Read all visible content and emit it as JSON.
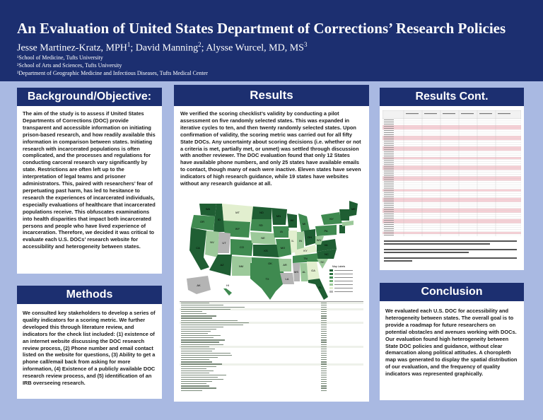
{
  "header": {
    "title": "An Evaluation of United States Department of Corrections’ Research Policies",
    "authors": [
      {
        "name": "Jesse Martinez-Kratz, MPH",
        "aff": "1",
        "sep": "; "
      },
      {
        "name": "David Manning",
        "aff": "2",
        "sep": "; "
      },
      {
        "name": "Alysse Wurcel, MD, MS",
        "aff": "3",
        "sep": ""
      }
    ],
    "affiliations": [
      "¹School of Medicine, Tufts University",
      "²School of Arts and Sciences, Tufts University",
      "³Department of Geographic Medicine and Infectious Diseases, Tufts Medical Center"
    ]
  },
  "background": {
    "heading": "Background/Objective:",
    "text": "The aim of the study is to assess if United States Departments of Corrections (DOC) provide transparent and accessible information on initiating prison-based research, and how readily available this information in comparison between states. Initiating research with incarcerated populations is often complicated, and the processes and regulations for conducting carceral research vary significantly by state. Restrictions are often left up to the interpretation of legal teams and prisoner administrators. This, paired with researchers’ fear of perpetuating past harm, has led to hesitance to research the experiences of incarcerated individuals, especially evaluations of healthcare that incarcerated populations receive. This obfuscates examinations into health disparities that impact both incarcerated persons and people who have lived experience of incarceration. Therefore, we decided it was critical to evaluate each U.S. DOCs’ research website for accessibility and heterogeneity between states."
  },
  "methods": {
    "heading": "Methods",
    "text": "We consulted key stakeholders to develop a series of quality indicators for a scoring metric. We further developed this through literature review, and indicators for the check list included: (1) existence of an internet website discussing the DOC research review process, (2) Phone number and email contact listed on the website for questions, (3) Ability to get a phone call/email back from asking for more information, (4) Existence of a publicly available DOC research review process, and (5) identification of an IRB overseeing research."
  },
  "results": {
    "heading": "Results",
    "text": "We verified the scoring checklist’s validity by conducting a pilot assessment on five randomly selected states. This was expanded in iterative cycles to ten, and then twenty randomly selected states. Upon confirmation of validity, the scoring metric was carried out for all fifty State DOCs. Any uncertainty about scoring decisions (i.e. whether or not a criteria is met, partially met, or unmet) was settled through discussion with another reviewer. The DOC evaluation found that only 12 States have available phone numbers, and only 25 states have available emails to contact, though many of each were inactive. Eleven states have seven indicators of high research guidance, while 19 states have websites without any research guidance at all.",
    "map_state_labels": [
      "WA",
      "OR",
      "ID",
      "MT",
      "ND",
      "MN",
      "SD",
      "WY",
      "NV",
      "UT",
      "CO",
      "NE",
      "IA",
      "WI",
      "IL",
      "KS",
      "MO",
      "CA",
      "AZ",
      "NM",
      "OK",
      "TX",
      "AR",
      "LA",
      "MS",
      "AL",
      "TN",
      "KY",
      "IN",
      "OH",
      "MI",
      "GA",
      "FL",
      "SC",
      "NC",
      "VA",
      "WV",
      "PA",
      "NY",
      "ME",
      "AK",
      "HI"
    ],
    "map_legend_title": "Map Labels"
  },
  "results_cont": {
    "heading": "Results Cont."
  },
  "conclusion": {
    "heading": "Conclusion",
    "text": "We evaluated each U.S. DOC for accessibility and heterogeneity between states. The overall goal is to provide a roadmap for future researchers on potential obstacles and avenues working with DOCs. Our evaluation found high heterogeneity between State DOC policies and guidance, without clear demarcation along political attitudes. A choropleth map was generated to display the spatial distribution of our evaluation, and the frequency of quality indicators was represented graphically."
  },
  "colors": {
    "header_bg": "#1c2f70",
    "body_bg": "#a9b9e2",
    "map_dark": "#1f5e33",
    "map_mid": "#3f8a50",
    "map_light": "#9cc99a",
    "map_pale": "#e2efcf",
    "map_gray": "#b4b4b4",
    "row_pink": "#f6cfd5"
  }
}
